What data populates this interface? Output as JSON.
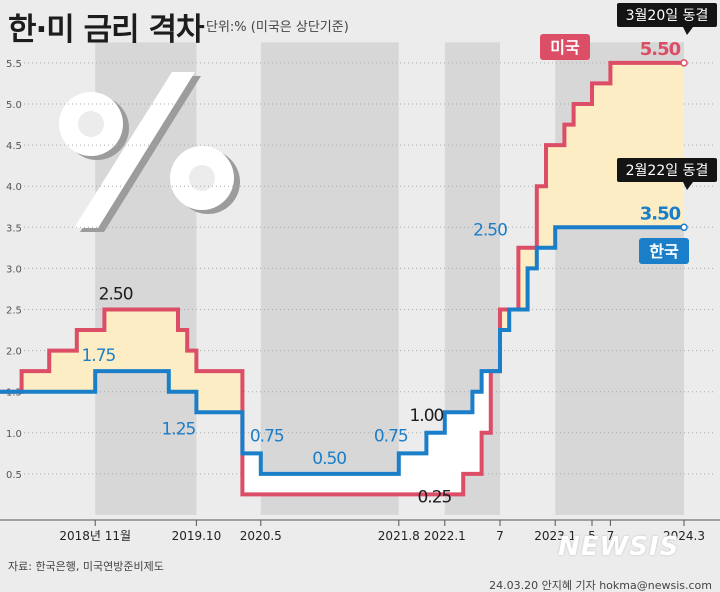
{
  "header": {
    "title": "한·미 금리 격차",
    "subtitle": "단위:% (미국은 상단기준)"
  },
  "footer": {
    "source": "자료: 한국은행, 미국연방준비제도",
    "credit": "24.03.20 안지혜 기자 hokma@newsis.com",
    "logo": "NEWSIS"
  },
  "colors": {
    "us": "#dc4d66",
    "korea": "#1a7ec8",
    "gap_fill": "#fcedc4",
    "band": "#d7d7d7",
    "background": "#ececec"
  },
  "chart_data": {
    "type": "line",
    "title": "한·미 금리 격차",
    "ylabel": "단위:%",
    "ylim": [
      0,
      5.75
    ],
    "xlim": [
      "2017-12",
      "2024-03"
    ],
    "y_ticks": [
      "0.5",
      "1.0",
      "1.5",
      "2.0",
      "2.5",
      "3.0",
      "3.5",
      "4.0",
      "4.5",
      "5.0",
      "5.5"
    ],
    "x_ticks": [
      {
        "label": "2018년 11월",
        "date": "2018-11"
      },
      {
        "label": "2019.10",
        "date": "2019-10"
      },
      {
        "label": "2020.5",
        "date": "2020-05"
      },
      {
        "label": "2021.8",
        "date": "2021-08"
      },
      {
        "label": "2022.1",
        "date": "2022-01"
      },
      {
        "label": "7",
        "date": "2022-07"
      },
      {
        "label": "2023.1",
        "date": "2023-01"
      },
      {
        "label": "5",
        "date": "2023-05"
      },
      {
        "label": "7",
        "date": "2023-07"
      },
      {
        "label": "2024.3",
        "date": "2024-03"
      }
    ],
    "series": [
      {
        "name": "미국",
        "color": "#dc4d66",
        "step_points": [
          [
            "2017-12",
            1.5
          ],
          [
            "2018-03",
            1.75
          ],
          [
            "2018-06",
            2.0
          ],
          [
            "2018-09",
            2.25
          ],
          [
            "2018-12",
            2.5
          ],
          [
            "2019-08",
            2.25
          ],
          [
            "2019-09",
            2.0
          ],
          [
            "2019-10",
            1.75
          ],
          [
            "2020-03",
            0.25
          ],
          [
            "2022-03",
            0.5
          ],
          [
            "2022-05",
            1.0
          ],
          [
            "2022-06",
            1.75
          ],
          [
            "2022-07",
            2.5
          ],
          [
            "2022-09",
            3.25
          ],
          [
            "2022-11",
            4.0
          ],
          [
            "2022-12",
            4.5
          ],
          [
            "2023-02",
            4.75
          ],
          [
            "2023-03",
            5.0
          ],
          [
            "2023-05",
            5.25
          ],
          [
            "2023-07",
            5.5
          ],
          [
            "2024-03",
            5.5
          ]
        ]
      },
      {
        "name": "한국",
        "color": "#1a7ec8",
        "step_points": [
          [
            "2017-12",
            1.5
          ],
          [
            "2018-11",
            1.75
          ],
          [
            "2019-07",
            1.5
          ],
          [
            "2019-10",
            1.25
          ],
          [
            "2020-03",
            0.75
          ],
          [
            "2020-05",
            0.5
          ],
          [
            "2021-08",
            0.75
          ],
          [
            "2021-11",
            1.0
          ],
          [
            "2022-01",
            1.25
          ],
          [
            "2022-04",
            1.5
          ],
          [
            "2022-05",
            1.75
          ],
          [
            "2022-07",
            2.25
          ],
          [
            "2022-08",
            2.5
          ],
          [
            "2022-10",
            3.0
          ],
          [
            "2022-11",
            3.25
          ],
          [
            "2023-01",
            3.5
          ],
          [
            "2024-03",
            3.5
          ]
        ]
      }
    ],
    "annotations": [
      {
        "text": "2.50",
        "date": "2019-01",
        "value": 2.5,
        "series": "미국"
      },
      {
        "text": "1.75",
        "date": "2018-12",
        "value": 1.75,
        "series": "한국"
      },
      {
        "text": "1.25",
        "date": "2019-10",
        "value": 1.25,
        "series": "한국"
      },
      {
        "text": "0.75",
        "date": "2020-05",
        "value": 0.75,
        "series": "한국"
      },
      {
        "text": "0.50",
        "date": "2020-12",
        "value": 0.5,
        "series": "한국"
      },
      {
        "text": "0.75",
        "date": "2021-08",
        "value": 0.75,
        "series": "한국"
      },
      {
        "text": "1.00",
        "date": "2021-11",
        "value": 1.0,
        "series": "한국"
      },
      {
        "text": "0.25",
        "date": "2021-11",
        "value": 0.25,
        "series": "미국"
      },
      {
        "text": "2.50",
        "date": "2022-07",
        "value": 2.5,
        "series": "한국"
      },
      {
        "text": "5.50",
        "date": "2024-03",
        "value": 5.5,
        "series": "미국"
      },
      {
        "text": "3.50",
        "date": "2024-03",
        "value": 3.5,
        "series": "한국"
      }
    ],
    "callouts": [
      {
        "text": "3월20일 동결",
        "series": "미국"
      },
      {
        "text": "2월22일 동결",
        "series": "한국"
      }
    ],
    "series_labels": [
      {
        "text": "미국",
        "series": "미국"
      },
      {
        "text": "한국",
        "series": "한국"
      }
    ]
  }
}
